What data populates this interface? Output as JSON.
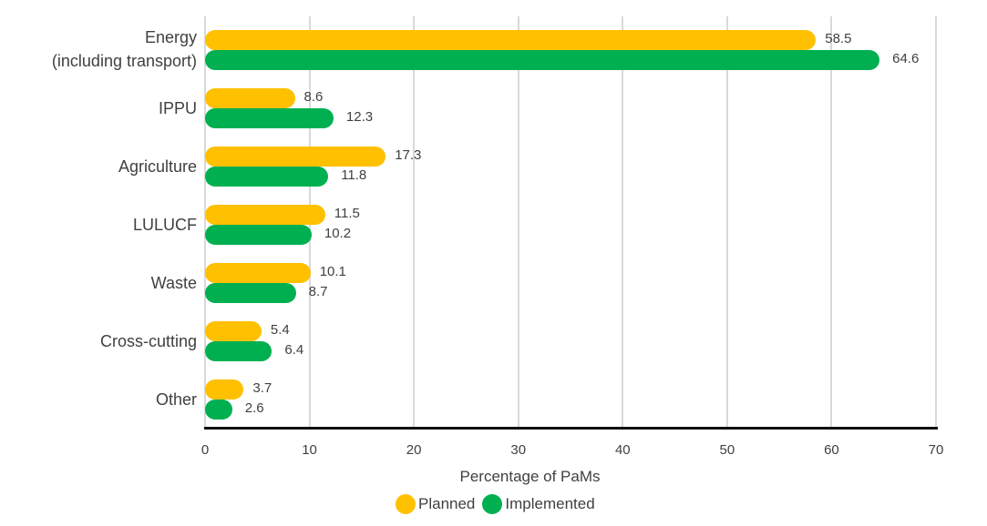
{
  "chart_data": {
    "type": "bar",
    "orientation": "horizontal",
    "title": "",
    "xlabel": "Percentage of PaMs",
    "ylabel": "",
    "xlim": [
      0,
      70
    ],
    "x_ticks": [
      "0",
      "10",
      "20",
      "30",
      "40",
      "50",
      "60",
      "70"
    ],
    "grid": true,
    "legend_position": "bottom",
    "categories": [
      "Energy\n(including transport)",
      "IPPU",
      "Agriculture",
      "LULUCF",
      "Waste",
      "Cross-cutting",
      "Other"
    ],
    "series": [
      {
        "name": "Planned",
        "color": "#FFC000",
        "values": [
          58.5,
          8.6,
          17.3,
          11.5,
          10.1,
          5.4,
          3.7
        ]
      },
      {
        "name": "Implemented",
        "color": "#00B050",
        "values": [
          64.6,
          12.3,
          11.8,
          10.2,
          8.7,
          6.4,
          2.6
        ]
      }
    ]
  },
  "labels": {
    "categories": [
      "Energy",
      "(including transport)",
      "IPPU",
      "Agriculture",
      "LULUCF",
      "Waste",
      "Cross-cutting",
      "Other"
    ],
    "xlabel": "Percentage of PaMs",
    "legend": [
      "Planned",
      "Implemented"
    ]
  }
}
